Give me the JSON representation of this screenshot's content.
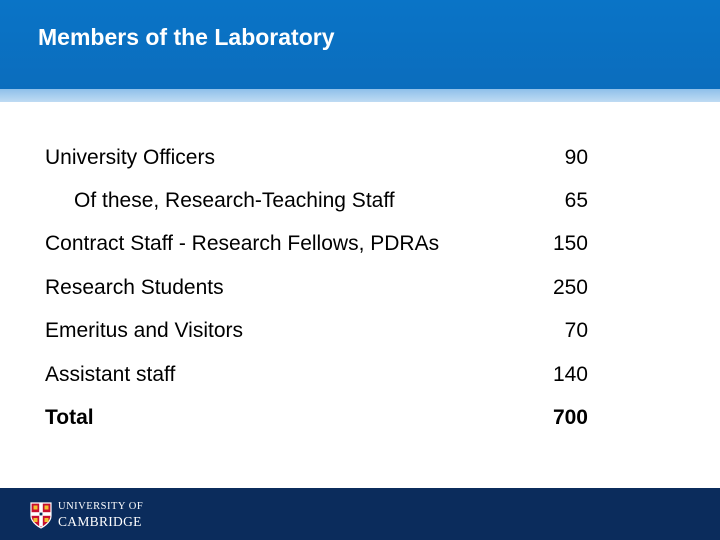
{
  "slide": {
    "title": "Members of the Laboratory"
  },
  "members": [
    {
      "label": "University Officers",
      "value": "90"
    },
    {
      "label": "Of these, Research-Teaching Staff",
      "value": "65"
    },
    {
      "label": "Contract Staff - Research Fellows, PDRAs",
      "value": "150"
    },
    {
      "label": "Research Students",
      "value": "250"
    },
    {
      "label": "Emeritus and Visitors",
      "value": "70"
    },
    {
      "label": "Assistant staff",
      "value": "140"
    },
    {
      "label": "Total",
      "value": "700"
    }
  ],
  "footer": {
    "logo_line1": "UNIVERSITY OF",
    "logo_line2": "CAMBRIDGE",
    "crest_icon": "cambridge-crest-icon"
  },
  "colors": {
    "header": "#0a74c7",
    "stripe": "#a9cdef",
    "footer": "#0b2c5c",
    "crest_red": "#c8102e"
  }
}
